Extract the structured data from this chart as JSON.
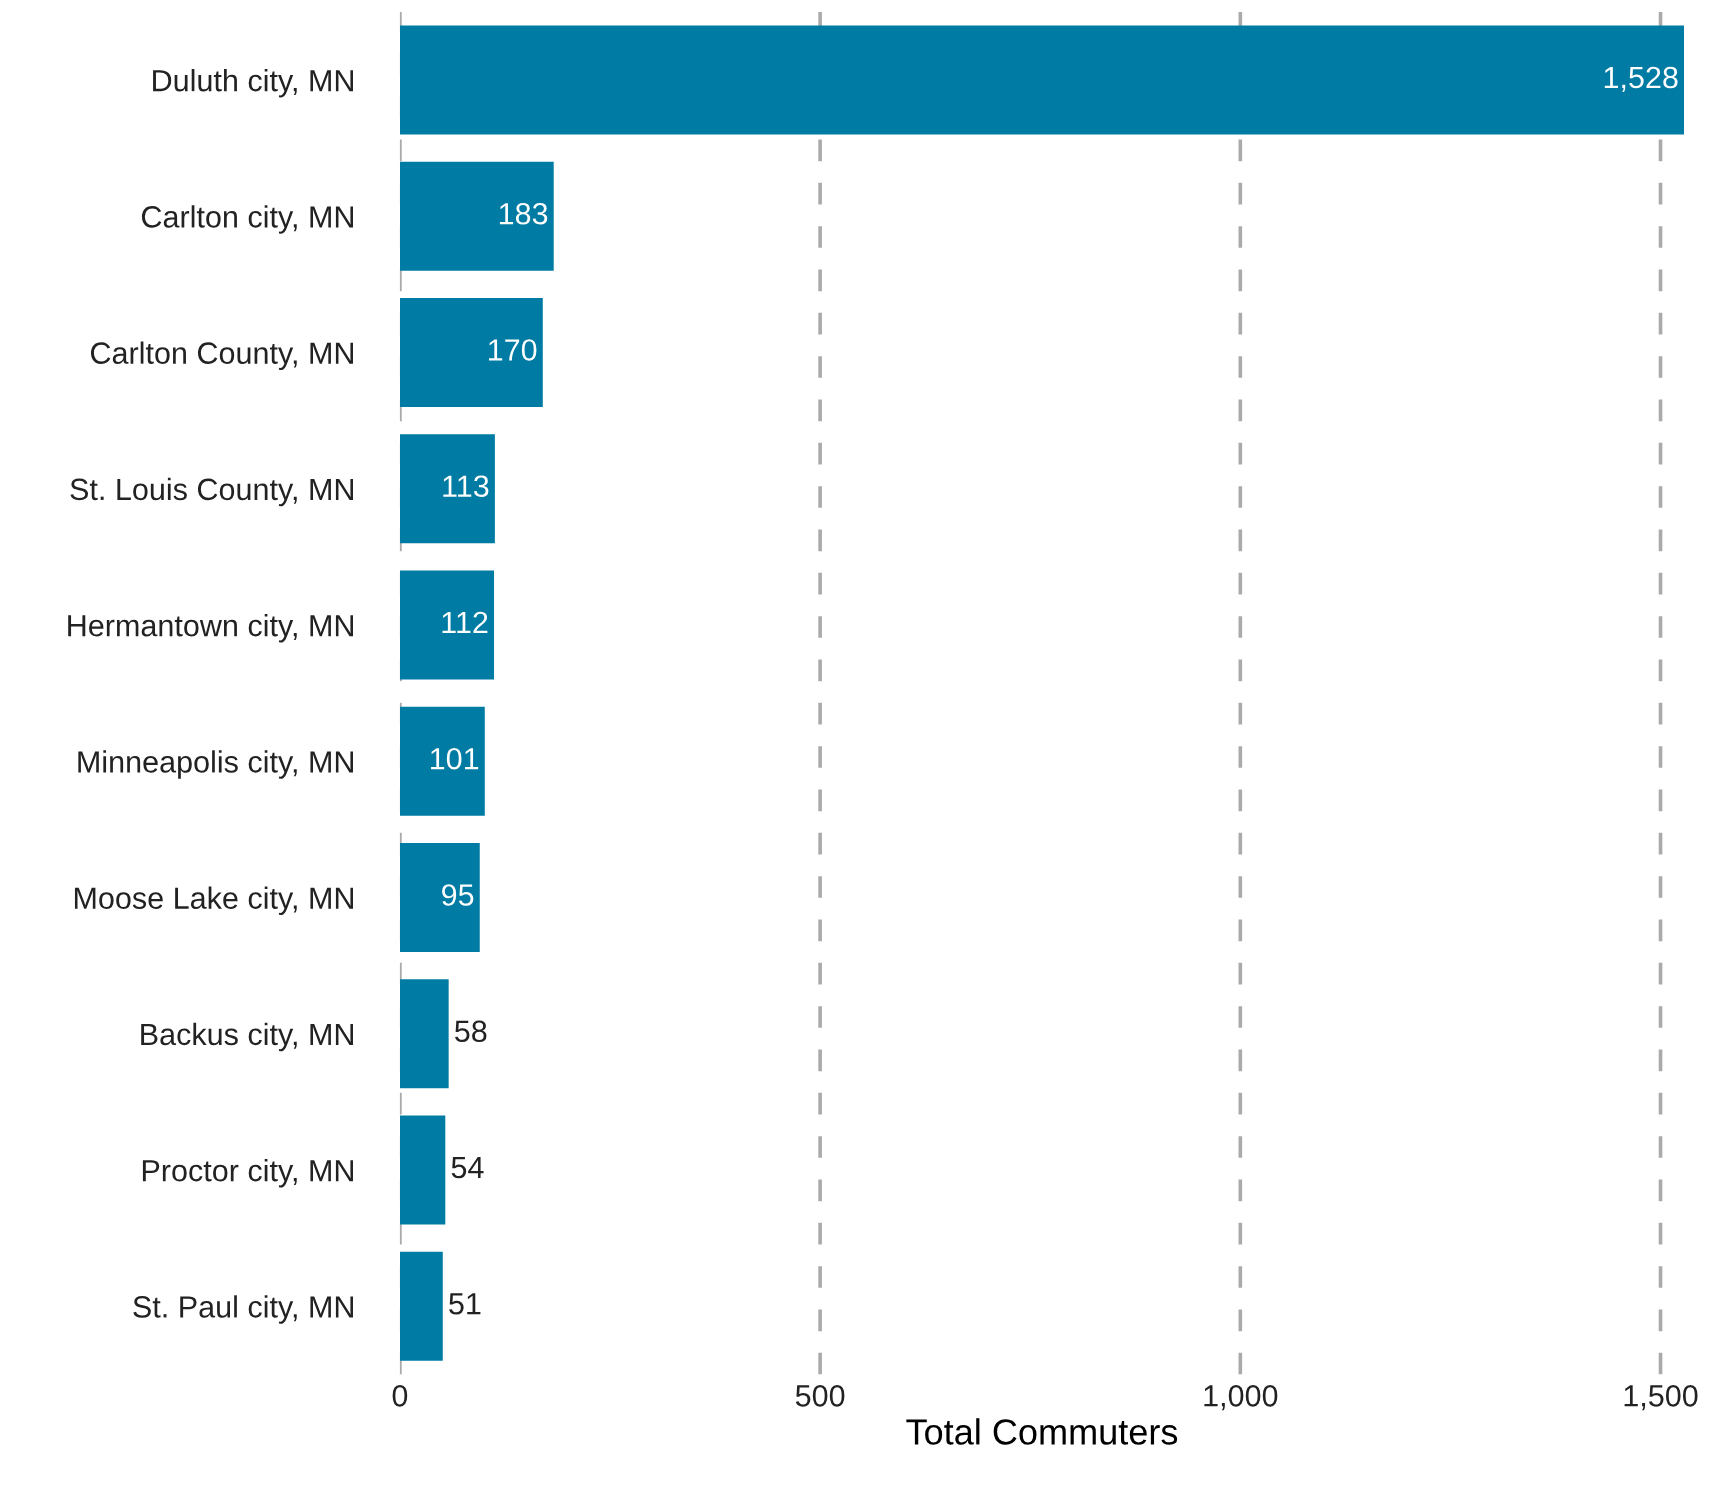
{
  "chart_data": {
    "type": "bar",
    "orientation": "horizontal",
    "categories": [
      "Duluth city, MN",
      "Carlton city, MN",
      "Carlton County, MN",
      "St. Louis County, MN",
      "Hermantown city, MN",
      "Minneapolis city, MN",
      "Moose Lake city, MN",
      "Backus city, MN",
      "Proctor city, MN",
      "St. Paul city, MN"
    ],
    "values": [
      1528,
      183,
      170,
      113,
      112,
      101,
      95,
      58,
      54,
      51
    ],
    "value_labels": [
      "1,528",
      "183",
      "170",
      "113",
      "112",
      "101",
      "95",
      "58",
      "54",
      "51"
    ],
    "color": "#007ba3",
    "xlabel": "Total Commuters",
    "xlim": [
      0,
      1528
    ],
    "xticks": [
      0,
      500,
      {
        "value": 1000,
        "label": "1,000"
      },
      {
        "value": 1500,
        "label": "1,500"
      }
    ],
    "grid": "x"
  }
}
